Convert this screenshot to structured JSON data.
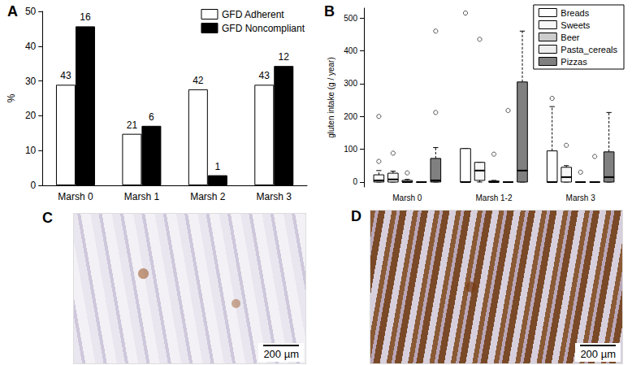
{
  "chart_data": [
    {
      "type": "bar",
      "title": "A",
      "ylabel": "%",
      "categories": [
        "Marsh 0",
        "Marsh 1",
        "Marsh 2",
        "Marsh 3"
      ],
      "series": [
        {
          "name": "GFD Adherent",
          "color": "#ffffff",
          "values": [
            28.9,
            14.8,
            27.6,
            28.9
          ],
          "counts": [
            43,
            21,
            42,
            43
          ]
        },
        {
          "name": "GFD Noncompliant",
          "color": "#000000",
          "values": [
            45.7,
            17.1,
            2.9,
            34.3
          ],
          "counts": [
            16,
            6,
            1,
            12
          ]
        }
      ],
      "ylim": [
        0,
        50
      ],
      "yticks": [
        0,
        10,
        20,
        30,
        40,
        50
      ],
      "grid": false,
      "legend": "upper right"
    },
    {
      "type": "boxplot",
      "title": "B",
      "ylabel": "gluten intake (g / year)",
      "categories": [
        "Marsh 0",
        "Marsh 1-2",
        "Marsh 3"
      ],
      "series": [
        {
          "name": "Breads",
          "color": "#ffffff",
          "values": [
            [
              0,
              0,
              5,
              22,
              35
            ],
            [
              0,
              0,
              0,
              102,
              102
            ],
            [
              0,
              0,
              0,
              95,
              230
            ]
          ],
          "outliers": [
            [
              63,
              200
            ],
            [
              515
            ],
            [
              255
            ]
          ]
        },
        {
          "name": "Sweets",
          "color": "#f7f7f7",
          "values": [
            [
              0,
              0,
              8,
              27,
              33
            ],
            [
              0,
              5,
              35,
              60,
              60
            ],
            [
              0,
              0,
              15,
              45,
              50
            ]
          ],
          "outliers": [
            [
              88
            ],
            [
              435
            ],
            [
              112
            ]
          ]
        },
        {
          "name": "Beer",
          "color": "#cccccc",
          "values": [
            [
              0,
              0,
              0,
              5,
              8
            ],
            [
              0,
              0,
              0,
              3,
              5
            ],
            [
              0,
              0,
              0,
              0,
              0
            ]
          ],
          "outliers": [
            [
              28
            ],
            [
              85
            ],
            [
              30
            ]
          ]
        },
        {
          "name": "Pasta_cereals",
          "color": "#eeeeee",
          "values": [
            [
              0,
              0,
              0,
              0,
              0
            ],
            [
              0,
              0,
              0,
              0,
              0
            ],
            [
              0,
              0,
              0,
              0,
              0
            ]
          ],
          "outliers": [
            [],
            [
              218
            ],
            [
              78
            ]
          ]
        },
        {
          "name": "Pizzas",
          "color": "#808080",
          "values": [
            [
              0,
              0,
              5,
              72,
              105
            ],
            [
              0,
              0,
              35,
              305,
              460
            ],
            [
              0,
              0,
              15,
              92,
              212
            ]
          ],
          "outliers": [
            [
              212,
              460
            ],
            [],
            []
          ]
        }
      ],
      "ylim": [
        -15,
        530
      ],
      "yticks": [
        0,
        100,
        200,
        300,
        400,
        500
      ],
      "grid": false,
      "legend": "upper right"
    }
  ],
  "images": [
    {
      "label": "C",
      "scale_bar": "200 µm"
    },
    {
      "label": "D",
      "scale_bar": "200 µm"
    }
  ]
}
